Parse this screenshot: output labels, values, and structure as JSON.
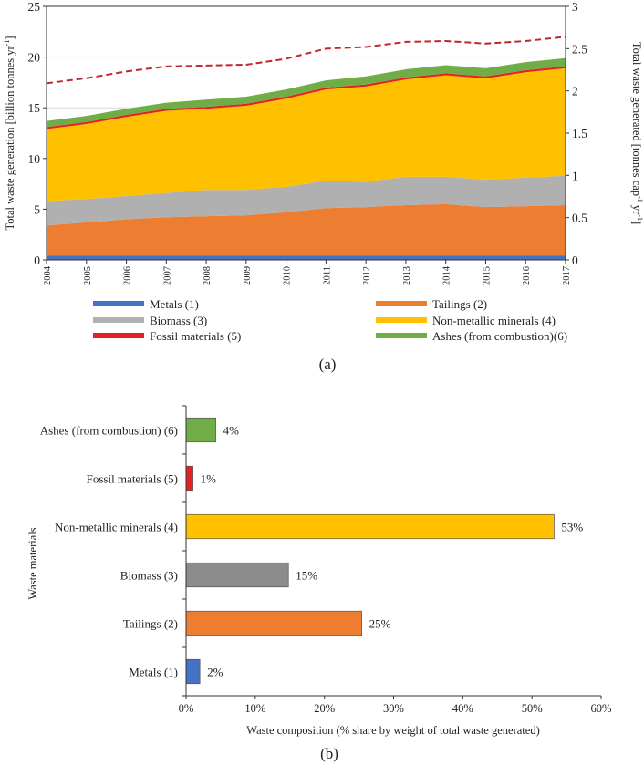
{
  "chart_data": [
    {
      "type": "area",
      "panel_label": "(a)",
      "ylabel": "Total waste generation  [billion tonnes yr",
      "ylabel_sup": "-1",
      "ylabel_end": "]",
      "y2label": "Total waste generated  [tonnes cap",
      "y2label_sup1": "-1",
      "y2label_mid": " yr",
      "y2label_sup2": "-1",
      "y2label_end": "]",
      "ylim": [
        0,
        25
      ],
      "y2lim": [
        0,
        3
      ],
      "yticks": [
        "0",
        "5",
        "10",
        "15",
        "20",
        "25"
      ],
      "y2ticks": [
        "0",
        "0.5",
        "1",
        "1.5",
        "2",
        "2.5",
        "3"
      ],
      "x": [
        "2004",
        "2005",
        "2006",
        "2007",
        "2008",
        "2009",
        "2010",
        "2011",
        "2012",
        "2013",
        "2014",
        "2015",
        "2016",
        "2017"
      ],
      "series": [
        {
          "name": "Metals (1)",
          "color": "#4472c4",
          "values": [
            0.4,
            0.4,
            0.4,
            0.4,
            0.4,
            0.4,
            0.4,
            0.4,
            0.4,
            0.4,
            0.4,
            0.4,
            0.4,
            0.4
          ]
        },
        {
          "name": "Tailings (2)",
          "color": "#ed7d31",
          "values": [
            3.0,
            3.3,
            3.6,
            3.8,
            3.9,
            4.0,
            4.3,
            4.7,
            4.8,
            5.0,
            5.1,
            4.8,
            4.9,
            5.0
          ]
        },
        {
          "name": "Biomass (3)",
          "color": "#b0b0b0",
          "values": [
            2.4,
            2.3,
            2.3,
            2.4,
            2.6,
            2.5,
            2.5,
            2.7,
            2.5,
            2.8,
            2.7,
            2.7,
            2.8,
            2.9
          ]
        },
        {
          "name": "Non-metallic minerals (4)",
          "color": "#ffc000",
          "values": [
            7.1,
            7.4,
            7.8,
            8.1,
            8.0,
            8.3,
            8.7,
            9.0,
            9.4,
            9.6,
            10.0,
            10.0,
            10.4,
            10.6
          ]
        },
        {
          "name": "Fossil materials (5)",
          "color": "#e32322",
          "values": [
            0.2,
            0.2,
            0.2,
            0.2,
            0.2,
            0.2,
            0.2,
            0.2,
            0.2,
            0.2,
            0.2,
            0.2,
            0.2,
            0.2
          ]
        },
        {
          "name": "Ashes (from combustion)(6)",
          "color": "#70ad47",
          "values": [
            0.6,
            0.6,
            0.6,
            0.6,
            0.7,
            0.7,
            0.7,
            0.7,
            0.8,
            0.8,
            0.8,
            0.8,
            0.8,
            0.8
          ]
        }
      ],
      "per_capita": {
        "color": "#c0282d",
        "axis": "right",
        "values": [
          2.09,
          2.15,
          2.23,
          2.29,
          2.3,
          2.31,
          2.38,
          2.5,
          2.52,
          2.58,
          2.59,
          2.56,
          2.59,
          2.64
        ]
      }
    },
    {
      "type": "bar",
      "orientation": "horizontal",
      "panel_label": "(b)",
      "ylabel": "Waste materials",
      "xlabel": "Waste composition (% share by weight of total waste generated)",
      "xlim": [
        0,
        60
      ],
      "xticks": [
        "0%",
        "10%",
        "20%",
        "30%",
        "40%",
        "50%",
        "60%"
      ],
      "categories": [
        "Ashes (from combustion) (6)",
        "Fossil materials (5)",
        "Non-metallic minerals (4)",
        "Biomass (3)",
        "Tailings (2)",
        "Metals (1)"
      ],
      "values": [
        4.3,
        1.0,
        53.2,
        14.8,
        25.4,
        2.0
      ],
      "value_labels": [
        "4%",
        "1%",
        "53%",
        "15%",
        "25%",
        "2%"
      ],
      "colors": [
        "#70ad47",
        "#e32322",
        "#ffc000",
        "#8c8c8c",
        "#ed7d31",
        "#4472c4"
      ]
    }
  ]
}
